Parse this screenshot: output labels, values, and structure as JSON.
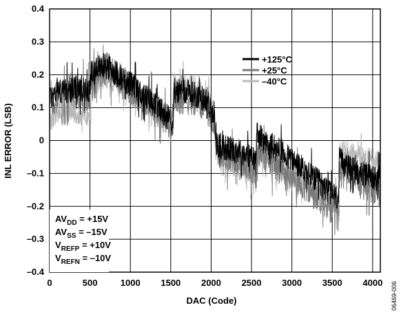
{
  "chart_data": {
    "type": "line",
    "xlabel": "DAC (Code)",
    "ylabel": "INL ERROR (LSB)",
    "xlim": [
      0,
      4095
    ],
    "ylim": [
      -0.4,
      0.4
    ],
    "x_ticks": [
      0,
      500,
      1000,
      1500,
      2000,
      2500,
      3000,
      3500,
      4000
    ],
    "y_ticks": [
      -0.4,
      -0.3,
      -0.2,
      -0.1,
      0,
      0.1,
      0.2,
      0.3,
      0.4
    ],
    "y_tick_labels": [
      "–0.4",
      "–0.3",
      "–0.2",
      "–0.1",
      "0",
      "0.1",
      "0.2",
      "0.3",
      "0.4"
    ],
    "grid": true,
    "legend_position": "top-right",
    "series": [
      {
        "name": "+125°C",
        "color": "#000000",
        "x": [
          0,
          100,
          200,
          300,
          400,
          511,
          512,
          600,
          700,
          800,
          900,
          1000,
          1100,
          1200,
          1300,
          1400,
          1535,
          1536,
          1650,
          1800,
          1950,
          2047,
          2048,
          2150,
          2300,
          2450,
          2559,
          2560,
          2700,
          2850,
          3000,
          3150,
          3300,
          3450,
          3583,
          3584,
          3700,
          3850,
          4000,
          4095
        ],
        "y": [
          0.13,
          0.15,
          0.15,
          0.16,
          0.15,
          0.16,
          0.2,
          0.22,
          0.23,
          0.21,
          0.19,
          0.17,
          0.15,
          0.13,
          0.11,
          0.09,
          0.05,
          0.15,
          0.15,
          0.14,
          0.12,
          0.08,
          -0.01,
          -0.02,
          -0.03,
          -0.04,
          -0.06,
          0.02,
          -0.01,
          -0.03,
          -0.06,
          -0.09,
          -0.12,
          -0.15,
          -0.18,
          -0.06,
          -0.08,
          -0.1,
          -0.11,
          -0.12
        ],
        "amplitude": 0.04
      },
      {
        "name": "+25°C",
        "color": "#7a7a7a",
        "x": [
          0,
          100,
          200,
          300,
          400,
          511,
          512,
          600,
          700,
          800,
          900,
          1000,
          1100,
          1200,
          1300,
          1400,
          1535,
          1536,
          1650,
          1800,
          1950,
          2047,
          2048,
          2150,
          2300,
          2450,
          2559,
          2560,
          2700,
          2850,
          3000,
          3150,
          3300,
          3450,
          3583,
          3584,
          3700,
          3850,
          4000,
          4095
        ],
        "y": [
          0.11,
          0.14,
          0.15,
          0.15,
          0.14,
          0.14,
          0.19,
          0.21,
          0.22,
          0.2,
          0.18,
          0.16,
          0.14,
          0.12,
          0.1,
          0.08,
          0.04,
          0.13,
          0.13,
          0.12,
          0.1,
          0.06,
          -0.02,
          -0.04,
          -0.05,
          -0.07,
          -0.09,
          -0.02,
          -0.05,
          -0.08,
          -0.11,
          -0.14,
          -0.17,
          -0.2,
          -0.23,
          -0.09,
          -0.11,
          -0.13,
          -0.14,
          -0.16
        ],
        "amplitude": 0.05
      },
      {
        "name": "–40°C",
        "color": "#b8b8b8",
        "x": [
          0,
          100,
          200,
          300,
          400,
          511,
          512,
          600,
          700,
          800,
          900,
          1000,
          1100,
          1200,
          1300,
          1400,
          1535,
          1536,
          1650,
          1800,
          1950,
          2047,
          2048,
          2150,
          2300,
          2450,
          2559,
          2560,
          2700,
          2850,
          3000,
          3150,
          3300,
          3450,
          3583,
          3584,
          3700,
          3850,
          4000,
          4095
        ],
        "y": [
          0.06,
          0.08,
          0.08,
          0.09,
          0.08,
          0.08,
          0.16,
          0.18,
          0.19,
          0.18,
          0.16,
          0.14,
          0.12,
          0.1,
          0.08,
          0.06,
          0.03,
          0.17,
          0.17,
          0.16,
          0.13,
          0.09,
          -0.04,
          -0.06,
          -0.08,
          -0.1,
          -0.13,
          -0.04,
          -0.07,
          -0.09,
          -0.11,
          -0.13,
          -0.15,
          -0.17,
          -0.19,
          -0.03,
          -0.04,
          -0.05,
          -0.06,
          -0.07
        ],
        "amplitude": 0.035
      }
    ],
    "conditions": [
      {
        "main": "AV",
        "sub": "DD",
        "rest": " = +15V"
      },
      {
        "main": "AV",
        "sub": "SS",
        "rest": " = –15V"
      },
      {
        "main": "V",
        "sub": "REFP",
        "rest": " = +10V"
      },
      {
        "main": "V",
        "sub": "REFN",
        "rest": " = –10V"
      }
    ],
    "figure_id": "06469-006"
  }
}
